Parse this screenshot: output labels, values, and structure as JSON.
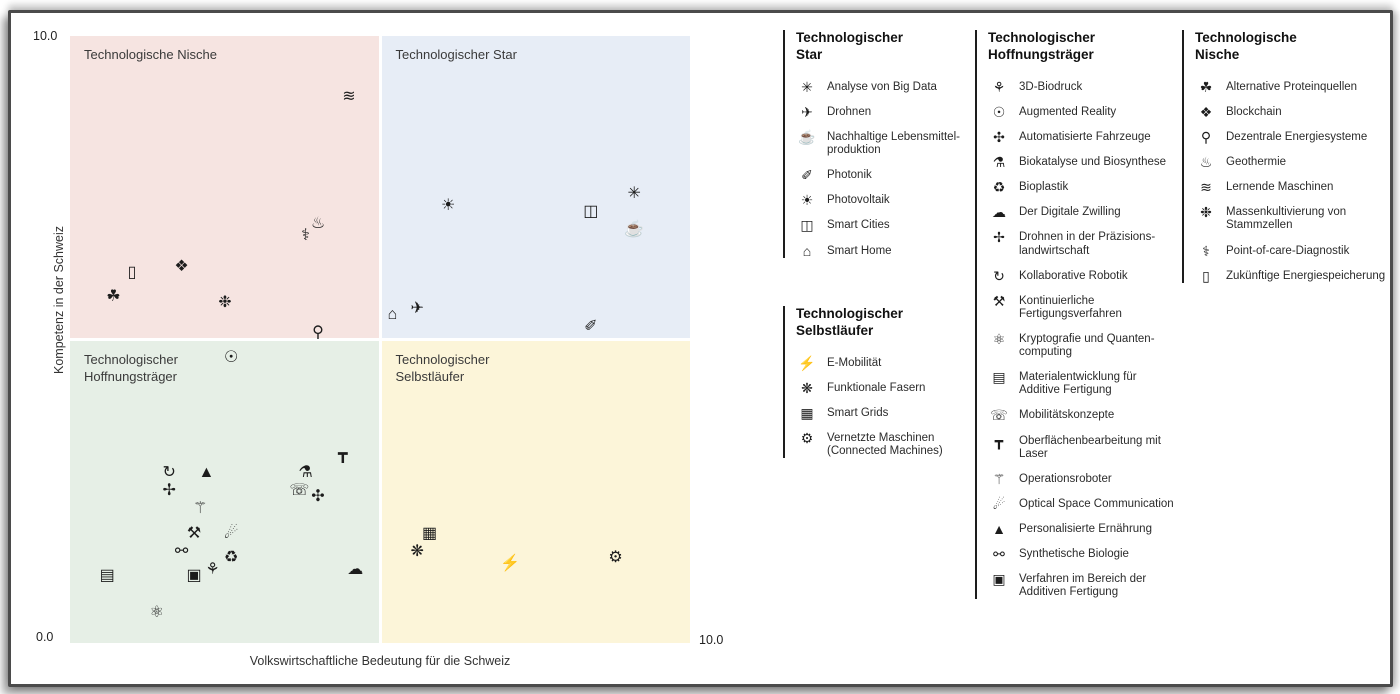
{
  "chart": {
    "y_axis_label": "Kompetenz in der Schweiz",
    "x_axis_label": "Volkswirtschaftliche Bedeutung für die Schweiz",
    "y_max_label": "10.0",
    "y_min_label": "0.0",
    "x_max_label": "10.0",
    "quadrants": {
      "top_left": {
        "title": "Technologische Nische",
        "color": "#f6e4e1"
      },
      "top_right": {
        "title": "Technologischer Star",
        "color": "#e7edf6"
      },
      "bottom_left": {
        "title": "Technologischer Hoffnungsträger",
        "color": "#e6efe6"
      },
      "bottom_right": {
        "title": "Technologischer Selbstläufer",
        "color": "#fcf5d9"
      }
    }
  },
  "chart_data": {
    "type": "scatter",
    "title": "",
    "xlabel": "Volkswirtschaftliche Bedeutung für die Schweiz",
    "ylabel": "Kompetenz in der Schweiz",
    "xlim": [
      0,
      10
    ],
    "ylim": [
      0,
      10
    ],
    "grid": false,
    "legend_position": "right",
    "series": [
      {
        "name": "Technologische Nische",
        "points": [
          {
            "label": "Alternative Proteinquellen",
            "x": 0.7,
            "y": 5.7,
            "glyph": "☘"
          },
          {
            "label": "Blockchain",
            "x": 1.8,
            "y": 6.2,
            "glyph": "❖"
          },
          {
            "label": "Dezentrale Energiesysteme",
            "x": 4.0,
            "y": 5.1,
            "glyph": "⚲"
          },
          {
            "label": "Geothermie",
            "x": 4.0,
            "y": 6.9,
            "glyph": "♨"
          },
          {
            "label": "Lernende Maschinen",
            "x": 4.5,
            "y": 9.0,
            "glyph": "≋"
          },
          {
            "label": "Massenkultivierung von Stammzellen",
            "x": 2.5,
            "y": 5.6,
            "glyph": "❉"
          },
          {
            "label": "Point-of-care-Diagnostik",
            "x": 3.8,
            "y": 6.7,
            "glyph": "⚕"
          },
          {
            "label": "Zukünftige Energiespeicherung",
            "x": 1.0,
            "y": 6.1,
            "glyph": "▯"
          }
        ]
      },
      {
        "name": "Technologischer Star",
        "points": [
          {
            "label": "Analyse von Big Data",
            "x": 9.1,
            "y": 7.4,
            "glyph": "✳"
          },
          {
            "label": "Drohnen",
            "x": 5.6,
            "y": 5.5,
            "glyph": "✈"
          },
          {
            "label": "Nachhaltige Lebensmittel-produktion",
            "x": 9.1,
            "y": 6.8,
            "glyph": "☕"
          },
          {
            "label": "Photonik",
            "x": 8.4,
            "y": 5.2,
            "glyph": "✐"
          },
          {
            "label": "Photovoltaik",
            "x": 6.1,
            "y": 7.2,
            "glyph": "☀"
          },
          {
            "label": "Smart Cities",
            "x": 8.4,
            "y": 7.1,
            "glyph": "◫"
          },
          {
            "label": "Smart Home",
            "x": 5.2,
            "y": 5.4,
            "glyph": "⌂"
          }
        ]
      },
      {
        "name": "Technologischer Hoffnungsträger",
        "points": [
          {
            "label": "3D-Biodruck",
            "x": 2.3,
            "y": 1.2,
            "glyph": "⚘"
          },
          {
            "label": "Augmented Reality",
            "x": 2.6,
            "y": 4.7,
            "glyph": "☉"
          },
          {
            "label": "Automatisierte Fahrzeuge",
            "x": 4.0,
            "y": 2.4,
            "glyph": "✣"
          },
          {
            "label": "Biokatalyse und Biosynthese",
            "x": 3.8,
            "y": 2.8,
            "glyph": "⚗"
          },
          {
            "label": "Bioplastik",
            "x": 2.6,
            "y": 1.4,
            "glyph": "♻"
          },
          {
            "label": "Der Digitale Zwilling",
            "x": 4.6,
            "y": 1.2,
            "glyph": "☁"
          },
          {
            "label": "Drohnen in der Präzisions-landwirtschaft",
            "x": 1.6,
            "y": 2.5,
            "glyph": "✢"
          },
          {
            "label": "Kollaborative Robotik",
            "x": 1.6,
            "y": 2.8,
            "glyph": "↻"
          },
          {
            "label": "Kontinuierliche Fertigungsverfahren",
            "x": 2.0,
            "y": 1.8,
            "glyph": "⚒"
          },
          {
            "label": "Kryptografie und Quanten-computing",
            "x": 1.4,
            "y": 0.5,
            "glyph": "⚛"
          },
          {
            "label": "Materialentwicklung für Additive Fertigung",
            "x": 0.6,
            "y": 1.1,
            "glyph": "▤"
          },
          {
            "label": "Mobilitätskonzepte",
            "x": 3.7,
            "y": 2.5,
            "glyph": "☏"
          },
          {
            "label": "Oberflächenbearbeitung mit Laser",
            "x": 4.4,
            "y": 3.1,
            "glyph": "┳"
          },
          {
            "label": "Operationsroboter",
            "x": 2.1,
            "y": 2.2,
            "glyph": "⚚"
          },
          {
            "label": "Optical Space Communication",
            "x": 2.6,
            "y": 1.8,
            "glyph": "☄"
          },
          {
            "label": "Personalisierte Ernährung",
            "x": 2.2,
            "y": 2.8,
            "glyph": "▲"
          },
          {
            "label": "Synthetische Biologie",
            "x": 1.8,
            "y": 1.5,
            "glyph": "⚯"
          },
          {
            "label": "Verfahren im Bereich der Additiven Fertigung",
            "x": 2.0,
            "y": 1.1,
            "glyph": "▣"
          }
        ]
      },
      {
        "name": "Technologischer Selbstläufer",
        "points": [
          {
            "label": "E-Mobilität",
            "x": 7.1,
            "y": 1.3,
            "glyph": "⚡"
          },
          {
            "label": "Funktionale Fasern",
            "x": 5.6,
            "y": 1.5,
            "glyph": "❋"
          },
          {
            "label": "Smart Grids",
            "x": 5.8,
            "y": 1.8,
            "glyph": "▦"
          },
          {
            "label": "Vernetzte Maschinen (Connected Machines)",
            "x": 8.8,
            "y": 1.4,
            "glyph": "⚙"
          }
        ]
      }
    ]
  },
  "legend": {
    "groups": [
      {
        "title": "Technologischer Star",
        "items": [
          {
            "label": "Analyse von Big Data",
            "icon": "big-data-icon",
            "glyph": "✳"
          },
          {
            "label": "Drohnen",
            "icon": "drone-icon",
            "glyph": "✈"
          },
          {
            "label": "Nachhaltige Lebensmittel-produktion",
            "icon": "sustainable-food-icon",
            "glyph": "☕"
          },
          {
            "label": "Photonik",
            "icon": "photonics-icon",
            "glyph": "✐"
          },
          {
            "label": "Photovoltaik",
            "icon": "photovoltaics-icon",
            "glyph": "☀"
          },
          {
            "label": "Smart Cities",
            "icon": "smart-cities-icon",
            "glyph": "◫"
          },
          {
            "label": "Smart Home",
            "icon": "smart-home-icon",
            "glyph": "⌂"
          }
        ]
      },
      {
        "title": "Technologischer Selbstläufer",
        "items": [
          {
            "label": "E-Mobilität",
            "icon": "e-mobility-icon",
            "glyph": "⚡"
          },
          {
            "label": "Funktionale Fasern",
            "icon": "functional-fibers-icon",
            "glyph": "❋"
          },
          {
            "label": "Smart Grids",
            "icon": "smart-grids-icon",
            "glyph": "▦"
          },
          {
            "label": "Vernetzte Maschinen (Connected Machines)",
            "icon": "connected-machines-icon",
            "glyph": "⚙"
          }
        ]
      },
      {
        "title": "Technologischer Hoffnungsträger",
        "items": [
          {
            "label": "3D-Biodruck",
            "icon": "bioprinting-icon",
            "glyph": "⚘"
          },
          {
            "label": "Augmented Reality",
            "icon": "augmented-reality-icon",
            "glyph": "☉"
          },
          {
            "label": "Automatisierte Fahrzeuge",
            "icon": "automated-vehicles-icon",
            "glyph": "✣"
          },
          {
            "label": "Biokatalyse und Biosynthese",
            "icon": "biocatalysis-icon",
            "glyph": "⚗"
          },
          {
            "label": "Bioplastik",
            "icon": "bioplastics-icon",
            "glyph": "♻"
          },
          {
            "label": "Der Digitale Zwilling",
            "icon": "digital-twin-icon",
            "glyph": "☁"
          },
          {
            "label": "Drohnen in der Präzisions-landwirtschaft",
            "icon": "precision-agriculture-drone-icon",
            "glyph": "✢"
          },
          {
            "label": "Kollaborative Robotik",
            "icon": "collaborative-robotics-icon",
            "glyph": "↻"
          },
          {
            "label": "Kontinuierliche Fertigungsverfahren",
            "icon": "continuous-manufacturing-icon",
            "glyph": "⚒"
          },
          {
            "label": "Kryptografie und Quanten-computing",
            "icon": "quantum-cryptography-icon",
            "glyph": "⚛"
          },
          {
            "label": "Materialentwicklung für Additive Fertigung",
            "icon": "additive-materials-icon",
            "glyph": "▤"
          },
          {
            "label": "Mobilitätskonzepte",
            "icon": "mobility-concepts-icon",
            "glyph": "☏"
          },
          {
            "label": "Oberflächenbearbeitung mit Laser",
            "icon": "laser-surface-icon",
            "glyph": "┳"
          },
          {
            "label": "Operationsroboter",
            "icon": "surgical-robot-icon",
            "glyph": "⚚"
          },
          {
            "label": "Optical Space Communication",
            "icon": "space-communication-icon",
            "glyph": "☄"
          },
          {
            "label": "Personalisierte Ernährung",
            "icon": "personalized-nutrition-icon",
            "glyph": "▲"
          },
          {
            "label": "Synthetische Biologie",
            "icon": "synthetic-biology-icon",
            "glyph": "⚯"
          },
          {
            "label": "Verfahren im Bereich der Additiven Fertigung",
            "icon": "additive-manufacturing-icon",
            "glyph": "▣"
          }
        ]
      },
      {
        "title": "Technologische Nische",
        "items": [
          {
            "label": "Alternative Proteinquellen",
            "icon": "alternative-proteins-icon",
            "glyph": "☘"
          },
          {
            "label": "Blockchain",
            "icon": "blockchain-icon",
            "glyph": "❖"
          },
          {
            "label": "Dezentrale Energiesysteme",
            "icon": "decentralized-energy-icon",
            "glyph": "⚲"
          },
          {
            "label": "Geothermie",
            "icon": "geothermal-icon",
            "glyph": "♨"
          },
          {
            "label": "Lernende Maschinen",
            "icon": "learning-machines-icon",
            "glyph": "≋"
          },
          {
            "label": "Massenkultivierung von Stammzellen",
            "icon": "stem-cells-icon",
            "glyph": "❉"
          },
          {
            "label": "Point-of-care-Diagnostik",
            "icon": "point-of-care-icon",
            "glyph": "⚕"
          },
          {
            "label": "Zukünftige Energiespeicherung",
            "icon": "energy-storage-icon",
            "glyph": "▯"
          }
        ]
      }
    ]
  }
}
